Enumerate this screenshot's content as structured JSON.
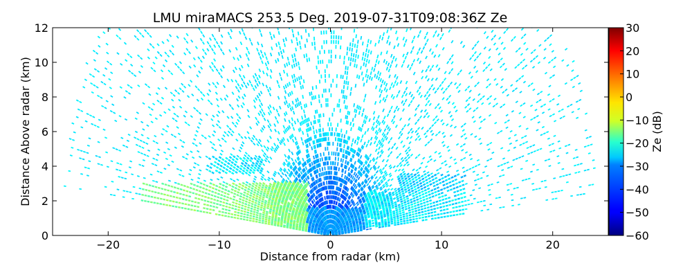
{
  "chart_data": {
    "type": "heatmap",
    "subtype": "radar-rhi-scan",
    "title": "LMU miraMACS 253.5 Deg. 2019-07-31T09:08:36Z  Ze",
    "xlabel": "Distance from radar (km)",
    "ylabel": "Distance Above radar  (km)",
    "xlim": [
      -25,
      25
    ],
    "ylim": [
      0,
      12
    ],
    "xticks": [
      -20,
      -10,
      0,
      10,
      20
    ],
    "yticks": [
      0,
      2,
      4,
      6,
      8,
      10,
      12
    ],
    "grid": false,
    "scan": {
      "max_range_km": 24,
      "elevation_min_deg": 6,
      "elevation_max_deg": 174,
      "radar_position_km": [
        0,
        0
      ]
    },
    "colorbar": {
      "label": "Ze (dB)",
      "colormap": "jet",
      "vmin": -60,
      "vmax": 30,
      "ticks": [
        30,
        20,
        10,
        0,
        -10,
        -20,
        -30,
        -40,
        -50,
        -60
      ],
      "tick_labels": [
        "30",
        "20",
        "10",
        "0",
        "−10",
        "−20",
        "−30",
        "−40",
        "−50",
        "−60"
      ]
    },
    "field": {
      "description": "reflectivity in dB",
      "background_level_db": -28,
      "near_radar_level_db": -48,
      "features": [
        {
          "name": "boundary-layer-left",
          "x_range_km": [
            -17,
            -2
          ],
          "height_km": [
            0,
            3
          ],
          "ze_db": -15
        },
        {
          "name": "boundary-layer-center",
          "x_range_km": [
            -2,
            3
          ],
          "height_km": [
            0,
            1.5
          ],
          "ze_db": -35
        },
        {
          "name": "boundary-layer-right",
          "x_range_km": [
            3,
            12
          ],
          "height_km": [
            0.5,
            2.5
          ],
          "ze_db": -28
        },
        {
          "name": "cloud-patch",
          "x_range_km": [
            -11,
            -6
          ],
          "height_km": [
            3.5,
            4.5
          ],
          "ze_db": -28
        },
        {
          "name": "cloud-patch-right",
          "x_range_km": [
            6,
            12
          ],
          "height_km": [
            2.5,
            3.5
          ],
          "ze_db": -30
        }
      ]
    }
  }
}
